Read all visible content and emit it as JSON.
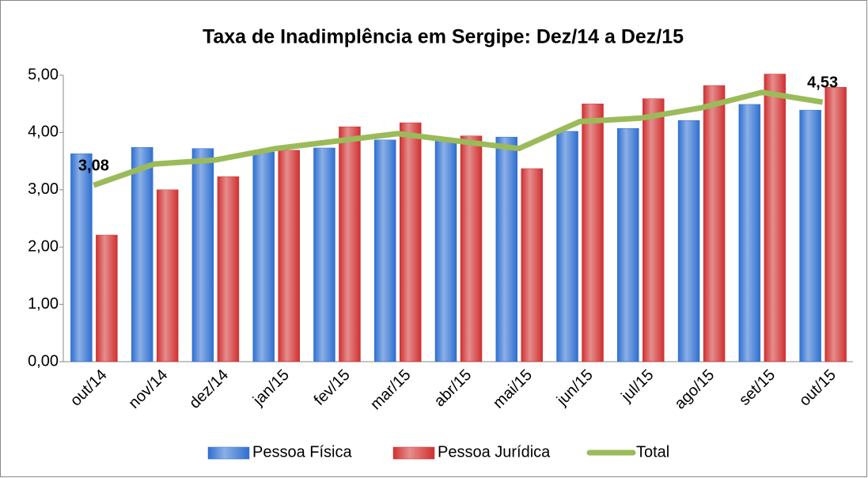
{
  "chart_data": {
    "type": "bar_line",
    "title": "Taxa de Inadimplência em Sergipe: Dez/14 a Dez/15",
    "categories": [
      "out/14",
      "nov/14",
      "dez/14",
      "jan/15",
      "fev/15",
      "mar/15",
      "abr/15",
      "mai/15",
      "jun/15",
      "jul/15",
      "ago/15",
      "set/15",
      "out/15"
    ],
    "series": [
      {
        "name": "Pessoa Física",
        "type": "bar",
        "color": "#2e6fd1",
        "values": [
          3.63,
          3.74,
          3.72,
          3.66,
          3.73,
          3.87,
          3.88,
          3.92,
          4.02,
          4.07,
          4.21,
          4.49,
          4.39
        ]
      },
      {
        "name": "Pessoa Jurídica",
        "type": "bar",
        "color": "#d03030",
        "values": [
          2.21,
          3.0,
          3.23,
          3.69,
          4.1,
          4.17,
          3.94,
          3.37,
          4.5,
          4.59,
          4.82,
          5.02,
          4.79
        ]
      },
      {
        "name": "Total",
        "type": "line",
        "color": "#9bbb59",
        "values": [
          3.08,
          3.45,
          3.52,
          3.72,
          3.85,
          3.98,
          3.85,
          3.72,
          4.19,
          4.25,
          4.43,
          4.7,
          4.53
        ],
        "value_labels": [
          "3,08",
          null,
          null,
          null,
          null,
          null,
          null,
          null,
          null,
          null,
          null,
          null,
          "4,53"
        ]
      }
    ],
    "ylim": [
      0,
      5
    ],
    "yticks": [
      {
        "value": 0,
        "label": "0,00"
      },
      {
        "value": 1,
        "label": "1,00"
      },
      {
        "value": 2,
        "label": "2,00"
      },
      {
        "value": 3,
        "label": "3,00"
      },
      {
        "value": 4,
        "label": "4,00"
      },
      {
        "value": 5,
        "label": "5,00"
      }
    ],
    "legend": "bottom"
  }
}
